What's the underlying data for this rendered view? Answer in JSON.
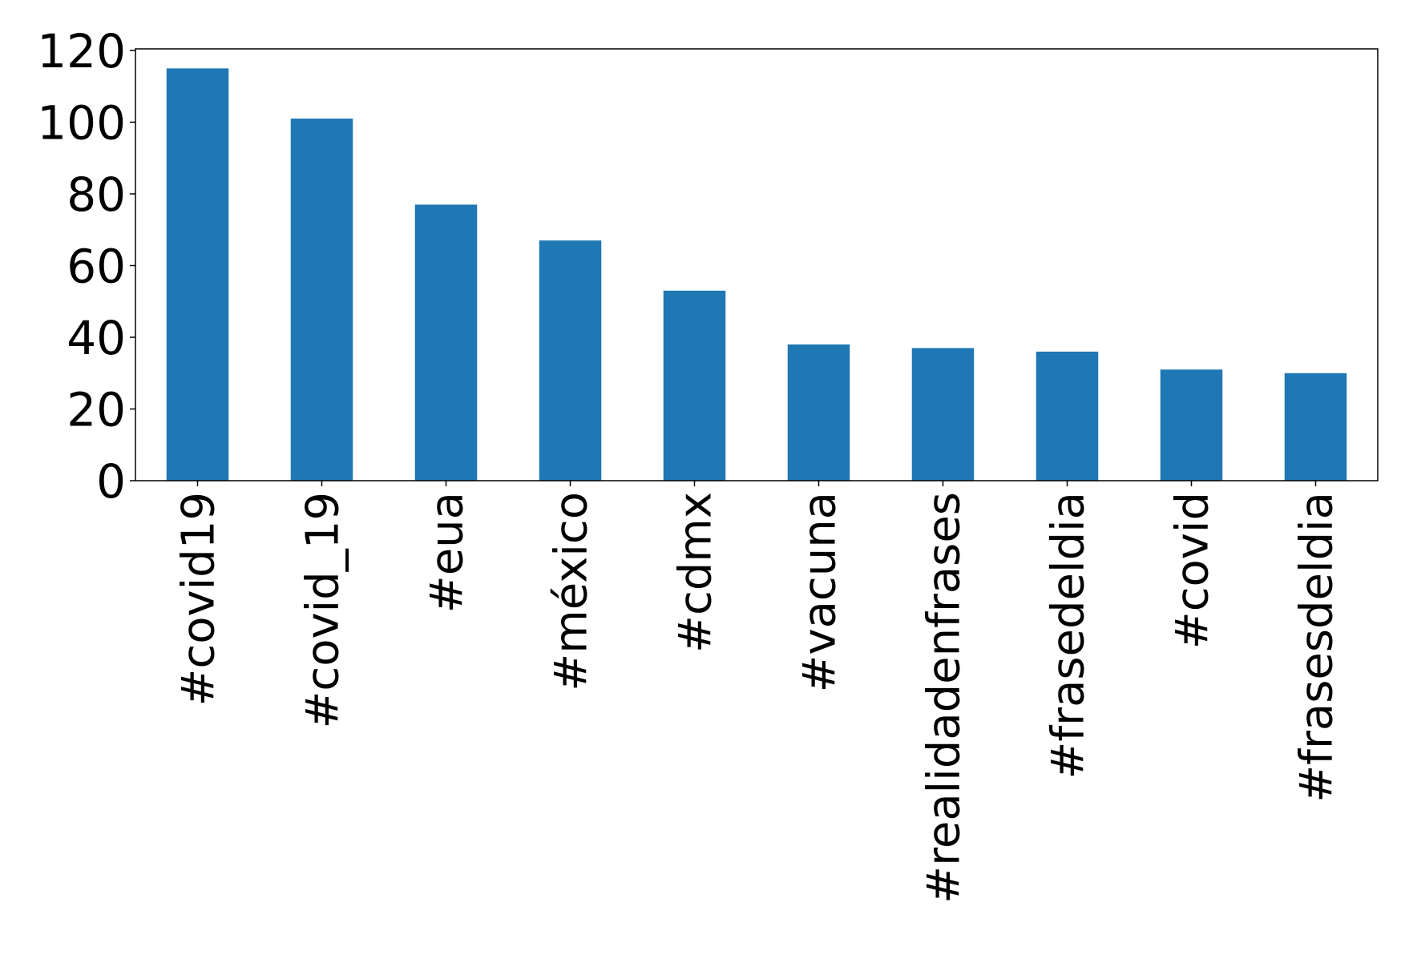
{
  "chart_data": {
    "type": "bar",
    "categories": [
      "#covid19",
      "#covid_19",
      "#eua",
      "#méxico",
      "#cdmx",
      "#vacuna",
      "#realidadenfrases",
      "#frasedeldia",
      "#covid",
      "#frasesdeldia"
    ],
    "values": [
      115,
      101,
      77,
      67,
      53,
      38,
      37,
      36,
      31,
      30
    ],
    "title": "",
    "xlabel": "",
    "ylabel": "",
    "ylim": [
      0,
      120
    ],
    "yticks": [
      0,
      20,
      40,
      60,
      80,
      100,
      120
    ],
    "grid": false,
    "legend": "none",
    "bar_color": "#1f77b4",
    "xtick_rotation": 90
  }
}
